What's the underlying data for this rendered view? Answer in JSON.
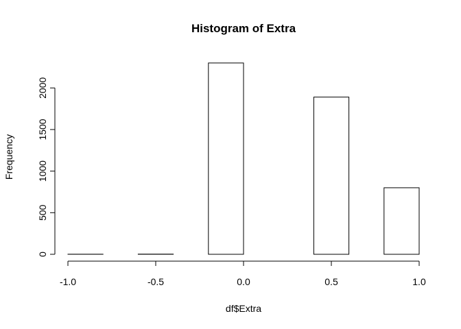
{
  "chart_data": {
    "type": "bar",
    "title": "Histogram of Extra",
    "xlabel": "df$Extra",
    "ylabel": "Frequency",
    "xlim": [
      -1.0,
      1.0
    ],
    "ylim": [
      0,
      2300
    ],
    "bin_edges": [
      -1.0,
      -0.8,
      -0.6,
      -0.4,
      -0.2,
      0.0,
      0.2,
      0.4,
      0.6,
      0.8,
      1.0
    ],
    "values": [
      1,
      0,
      2,
      0,
      2300,
      0,
      0,
      1890,
      0,
      800
    ],
    "x_ticks": [
      -1.0,
      -0.5,
      0.0,
      0.5,
      1.0
    ],
    "x_tick_labels": [
      "-1.0",
      "-0.5",
      "0.0",
      "0.5",
      "1.0"
    ],
    "y_ticks": [
      0,
      500,
      1000,
      1500,
      2000
    ],
    "y_tick_labels": [
      "0",
      "500",
      "1000",
      "1500",
      "2000"
    ],
    "grid": false,
    "colors": {
      "bar_fill": "#ffffff",
      "bar_stroke": "#000000"
    }
  }
}
